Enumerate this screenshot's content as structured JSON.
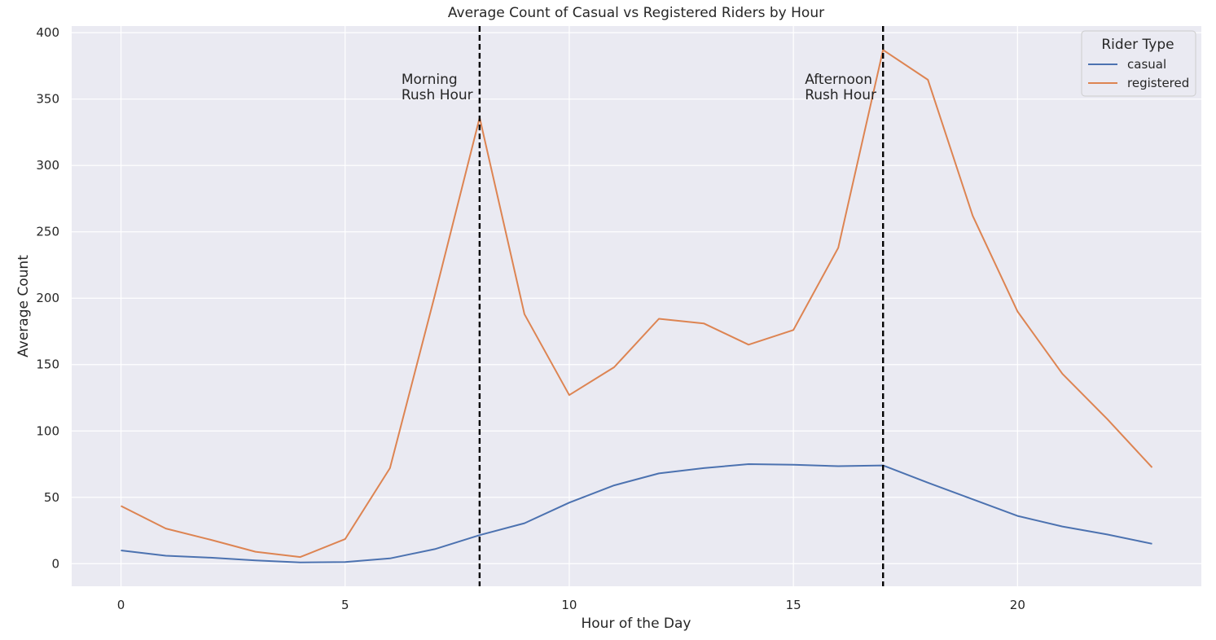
{
  "chart_data": {
    "type": "line",
    "title": "Average Count of Casual vs Registered Riders by Hour",
    "xlabel": "Hour of the Day",
    "ylabel": "Average Count",
    "xlim": [
      -1.1,
      24.1
    ],
    "ylim": [
      -17,
      405
    ],
    "x_ticks": [
      0,
      5,
      10,
      15,
      20
    ],
    "y_ticks": [
      0,
      50,
      100,
      150,
      200,
      250,
      300,
      350,
      400
    ],
    "grid": true,
    "legend": {
      "title": "Rider Type",
      "position": "top-right"
    },
    "x": [
      0,
      1,
      2,
      3,
      4,
      5,
      6,
      7,
      8,
      9,
      10,
      11,
      12,
      13,
      14,
      15,
      16,
      17,
      18,
      19,
      20,
      21,
      22,
      23
    ],
    "series": [
      {
        "name": "casual",
        "color": "#4c72b0",
        "values": [
          10,
          6,
          4.5,
          2.5,
          1,
          1.3,
          4,
          11,
          21.5,
          30.5,
          46,
          59,
          68,
          72,
          75,
          74.5,
          73.5,
          74,
          61,
          48.5,
          36,
          28,
          22,
          15
        ]
      },
      {
        "name": "registered",
        "color": "#dd8452",
        "values": [
          43.5,
          26.5,
          18,
          9,
          5,
          18.5,
          72,
          202,
          336,
          188,
          127,
          148,
          184.5,
          181,
          165,
          176,
          238,
          387,
          364.5,
          262,
          190,
          143,
          109,
          72.5
        ]
      }
    ],
    "annotations": [
      {
        "x": 8,
        "line_style": "dashed",
        "text": [
          "Morning",
          "Rush Hour"
        ]
      },
      {
        "x": 17,
        "line_style": "dashed",
        "text": [
          "Afternoon",
          "Rush Hour"
        ]
      }
    ]
  }
}
